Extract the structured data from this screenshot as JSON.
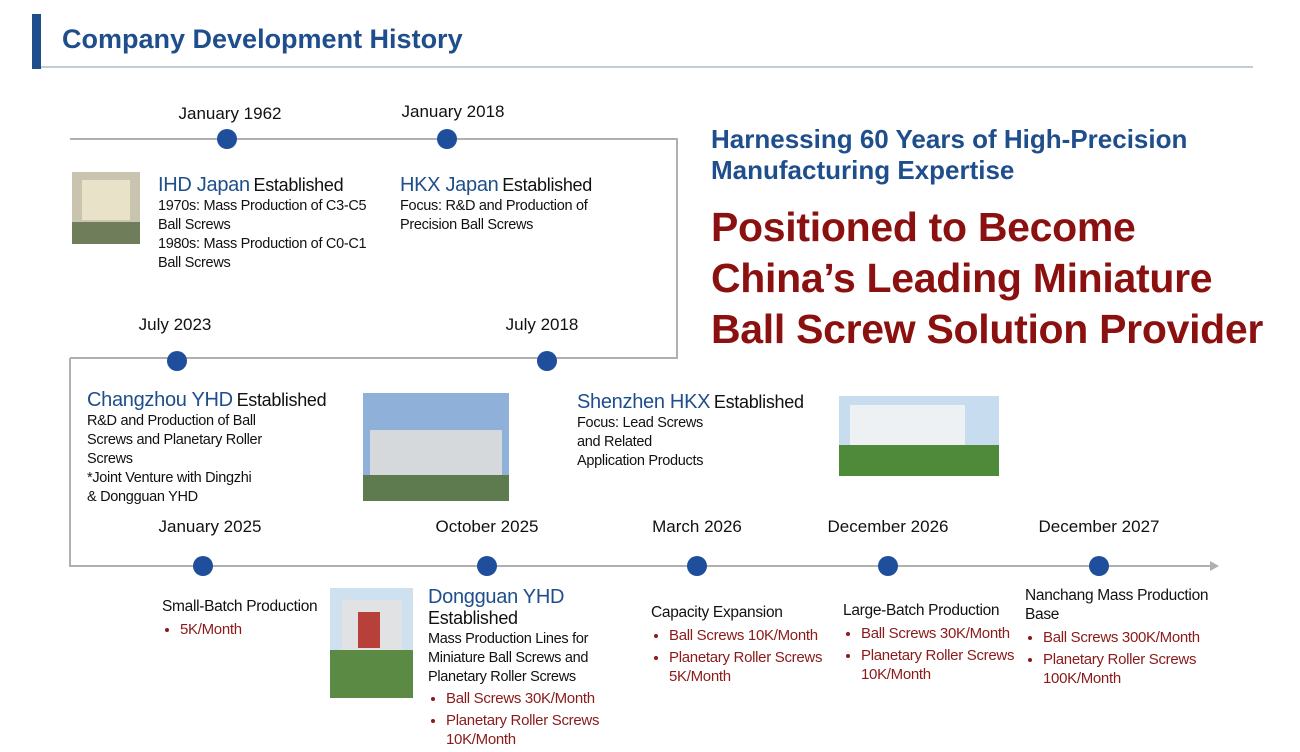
{
  "header": {
    "title": "Company Development History"
  },
  "headline": {
    "subtitle": [
      "Harnessing 60 Years of High-Precision",
      "Manufacturing Expertise"
    ],
    "statement": [
      "Positioned to Become",
      "China’s Leading Miniature",
      "Ball Screw Solution Provider"
    ]
  },
  "milestones": [
    {
      "date": "January 1962",
      "name": "IHD Japan",
      "suffix": "Established",
      "lines": [
        "1970s: Mass Production of C3-C5",
        "Ball Screws",
        "1980s: Mass Production of C0-C1",
        "Ball Screws"
      ]
    },
    {
      "date": "January 2018",
      "name": "HKX Japan",
      "suffix": "Established",
      "lines": [
        "Focus: R&D and Production of",
        "Precision Ball Screws"
      ]
    },
    {
      "date": "July 2023",
      "name": "Changzhou YHD",
      "suffix": "Established",
      "lines": [
        "R&D and Production of Ball",
        "Screws and Planetary Roller",
        "Screws",
        "*Joint Venture with Dingzhi",
        "& Dongguan YHD"
      ]
    },
    {
      "date": "July 2018",
      "name": "Shenzhen HKX",
      "suffix": "Established",
      "lines": [
        "Focus: Lead Screws",
        "and Related",
        "Application Products"
      ]
    },
    {
      "date": "January 2025",
      "heading": "Small-Batch Production",
      "bullets": [
        "5K/Month"
      ]
    },
    {
      "date": "October 2025",
      "name": "Dongguan YHD",
      "suffix": "Established",
      "lines": [
        "Mass Production Lines for",
        "Miniature Ball Screws and",
        "Planetary Roller Screws"
      ],
      "bullets": [
        "Ball Screws 30K/Month",
        "Planetary Roller Screws 10K/Month"
      ]
    },
    {
      "date": "March 2026",
      "heading": "Capacity Expansion",
      "bullets": [
        "Ball Screws 10K/Month",
        "Planetary Roller Screws 5K/Month"
      ]
    },
    {
      "date": "December 2026",
      "heading": "Large-Batch Production",
      "bullets": [
        "Ball Screws 30K/Month",
        "Planetary Roller Screws 10K/Month"
      ]
    },
    {
      "date": "December 2027",
      "heading": "Nanchang Mass Production Base",
      "bullets": [
        "Ball Screws 300K/Month",
        "Planetary Roller Screws 100K/Month"
      ]
    }
  ]
}
